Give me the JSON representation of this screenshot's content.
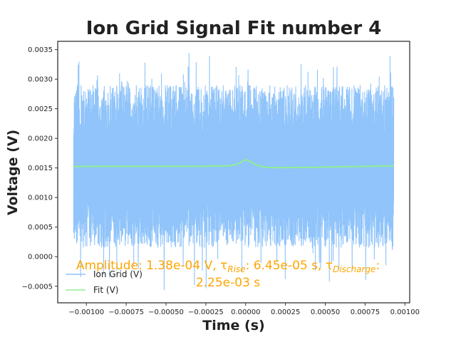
{
  "chart_data": {
    "type": "line",
    "title": "Ion Grid Signal Fit number 4",
    "xlabel": "Time (s)",
    "ylabel": "Voltage (V)",
    "xlim": [
      -0.00118,
      0.00103
    ],
    "ylim": [
      -0.00078,
      0.00364
    ],
    "x_ticks": [
      -0.001,
      -0.00075,
      -0.0005,
      -0.00025,
      0.0,
      0.00025,
      0.0005,
      0.00075,
      0.001
    ],
    "x_tick_labels": [
      "−0.00100",
      "−0.00075",
      "−0.00050",
      "−0.00025",
      "0.00000",
      "0.00025",
      "0.00050",
      "0.00075",
      "0.00100"
    ],
    "y_ticks": [
      -0.0005,
      0.0,
      0.0005,
      0.001,
      0.0015,
      0.002,
      0.0025,
      0.003,
      0.0035
    ],
    "y_tick_labels": [
      "−0.0005",
      "0.0000",
      "0.0005",
      "0.0010",
      "0.0015",
      "0.0020",
      "0.0025",
      "0.0030",
      "0.0035"
    ],
    "grid": false,
    "legend_position": "lower-left",
    "series": [
      {
        "name": "Ion Grid (V)",
        "color": "#90C4FA",
        "kind": "noisy-band",
        "x_range": [
          -0.00108,
          0.00093
        ],
        "mean": 0.00153,
        "typical_range": [
          0.00015,
          0.0029
        ],
        "extreme_range": [
          -0.00058,
          0.00352
        ]
      },
      {
        "name": "Fit (V)",
        "color": "#90EE90",
        "x": [
          -0.00108,
          -0.0008,
          -0.0005,
          -0.0003,
          -0.0001,
          -5e-05,
          -2e-05,
          0.0,
          3e-05,
          6e-05,
          0.0001,
          0.00015,
          0.0002,
          0.0003,
          0.0005,
          0.0007,
          0.00093
        ],
        "y": [
          0.001525,
          0.001527,
          0.001528,
          0.001528,
          0.001535,
          0.001565,
          0.00161,
          0.00164,
          0.001605,
          0.00156,
          0.00152,
          0.001508,
          0.001505,
          0.001507,
          0.001515,
          0.001525,
          0.001535
        ]
      }
    ],
    "annotation": {
      "line1": "Amplitude: 1.38e-04 V, τ",
      "sub1": "Rise",
      "mid": ": 6.45e-05 s, τ",
      "sub2": "Discharge",
      "colon": ":",
      "line2": "2.25e-03 s",
      "color": "#FFA500"
    }
  }
}
